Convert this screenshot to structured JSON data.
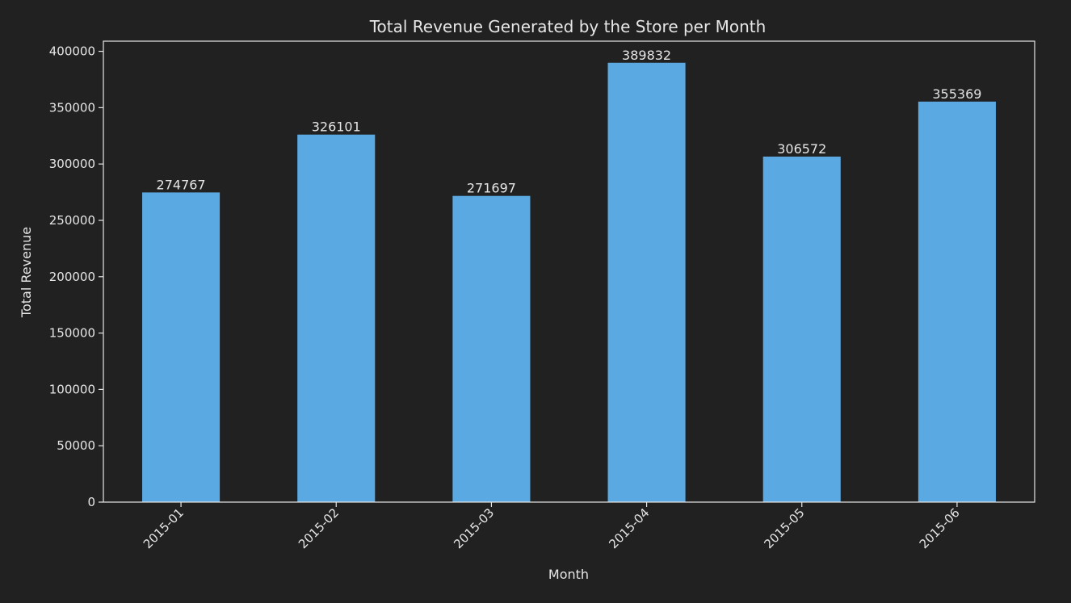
{
  "colors": {
    "background": "#212121",
    "bar": "#5aa9e2",
    "text": "#e6e6e6",
    "axis": "#e6e6e6"
  },
  "chart_data": {
    "type": "bar",
    "title": "Total Revenue Generated by the Store per Month",
    "xlabel": "Month",
    "ylabel": "Total Revenue",
    "categories": [
      "2015-01",
      "2015-02",
      "2015-03",
      "2015-04",
      "2015-05",
      "2015-06"
    ],
    "values": [
      274767,
      326101,
      271697,
      389832,
      306572,
      355369
    ],
    "data_labels": [
      "274767",
      "326101",
      "271697",
      "389832",
      "306572",
      "355369"
    ],
    "ylim": [
      0,
      409000
    ],
    "yticks": [
      0,
      50000,
      100000,
      150000,
      200000,
      250000,
      300000,
      350000,
      400000
    ],
    "ytick_labels": [
      "0",
      "50000",
      "100000",
      "150000",
      "200000",
      "250000",
      "300000",
      "350000",
      "400000"
    ],
    "grid": false,
    "legend": "none"
  }
}
